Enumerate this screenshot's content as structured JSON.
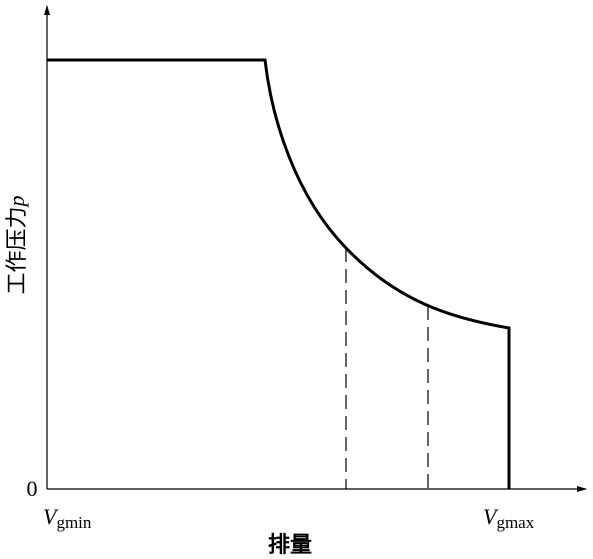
{
  "axis": {
    "y_label": "工作压力",
    "y_symbol": "p",
    "origin": "0",
    "x_label": "排量"
  },
  "x_marks": [
    {
      "symbol": "V",
      "subscript": "gmin"
    },
    {
      "symbol": "V",
      "subscript": "gmax"
    }
  ]
}
